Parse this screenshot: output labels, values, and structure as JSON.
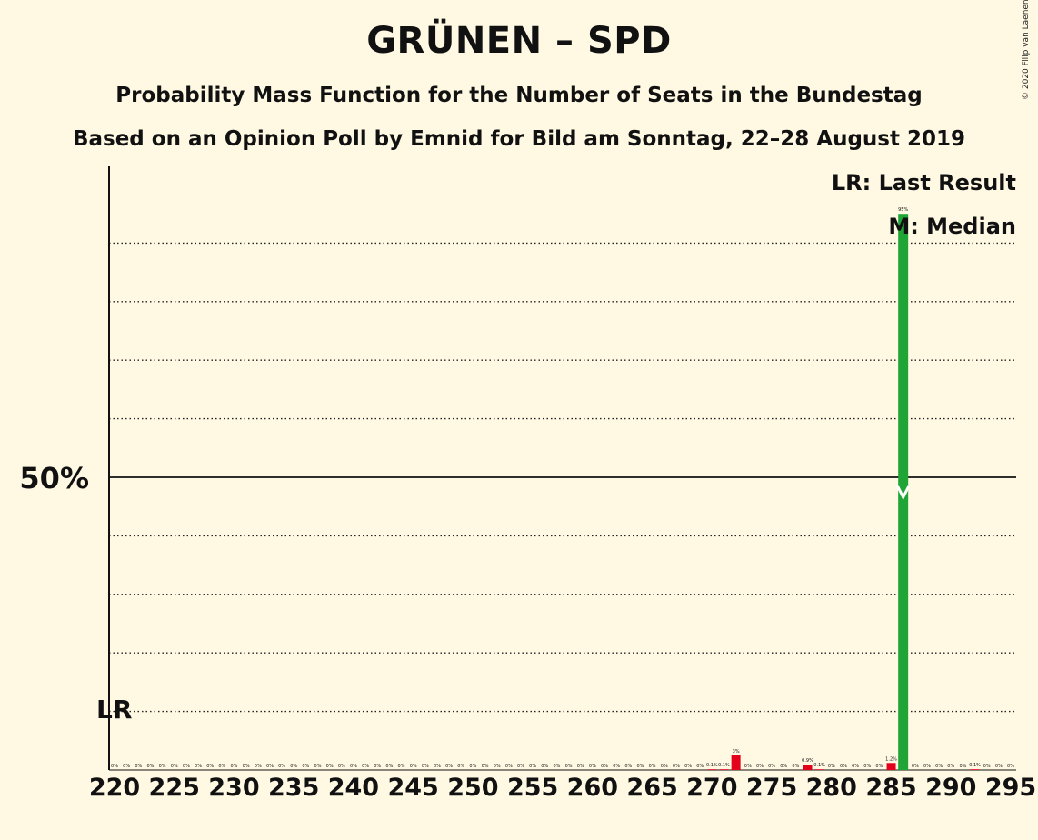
{
  "title": "GRÜNEN – SPD",
  "subtitle": "Probability Mass Function for the Number of Seats in the Bundestag",
  "subtitle2": "Based on an Opinion Poll by Emnid for Bild am Sonntag, 22–28 August 2019",
  "copyright": "© 2020 Filip van Laenen",
  "legend": {
    "last_result": "LR: Last Result",
    "median": "M: Median"
  },
  "colors": {
    "background": "#fff9e3",
    "green": "#1ea535",
    "red": "#e2001a",
    "axis": "#111111"
  },
  "chart_data": {
    "type": "bar",
    "title": "GRÜNEN – SPD",
    "subtitle": "Probability Mass Function for the Number of Seats in the Bundestag",
    "x_start": 220,
    "x_end": 295,
    "x_tick_step": 5,
    "xlim": [
      220,
      295
    ],
    "ylim": [
      0,
      1
    ],
    "y_major_label": "50%",
    "y_major_value": 0.5,
    "gridlines": [
      0.1,
      0.2,
      0.3,
      0.4,
      0.6,
      0.7,
      0.8,
      0.9
    ],
    "last_result_seat": 220,
    "last_result_label": "LR",
    "median_seat": 286,
    "median_label": "M",
    "legend_position": "top-right",
    "bars": [
      {
        "seat": 270,
        "value": 0.001,
        "label": "0.1%",
        "color": "red"
      },
      {
        "seat": 271,
        "value": 0.001,
        "label": "0.1%",
        "color": "red"
      },
      {
        "seat": 272,
        "value": 0.025,
        "label": "3%",
        "color": "red"
      },
      {
        "seat": 278,
        "value": 0.009,
        "label": "0.9%",
        "color": "red"
      },
      {
        "seat": 279,
        "value": 0.001,
        "label": "0.1%",
        "color": "red"
      },
      {
        "seat": 285,
        "value": 0.012,
        "label": "1.2%",
        "color": "red"
      },
      {
        "seat": 286,
        "value": 0.95,
        "label": "95%",
        "color": "green"
      },
      {
        "seat": 292,
        "value": 0.001,
        "label": "0.1%",
        "color": "red"
      }
    ],
    "zero_label": "0%"
  }
}
